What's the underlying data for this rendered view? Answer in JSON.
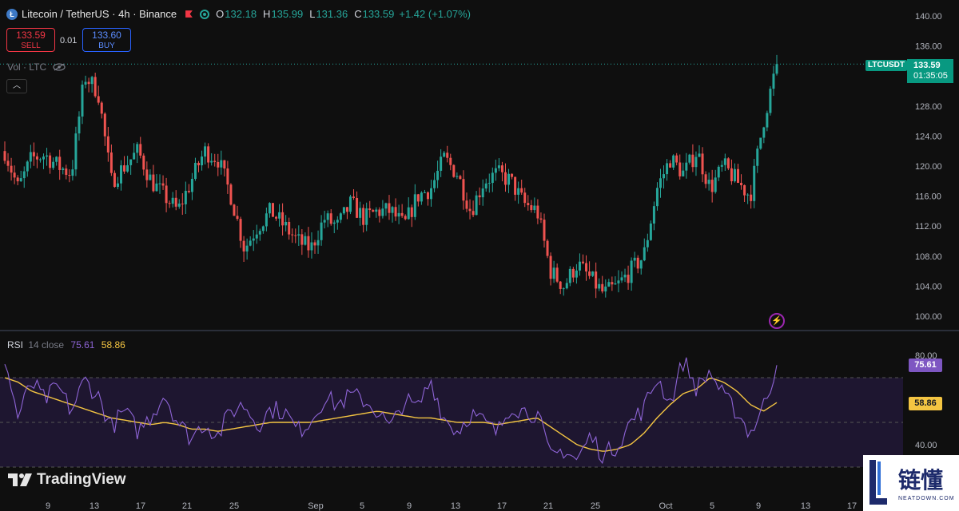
{
  "header": {
    "symbol_title": "Litecoin / TetherUS · 4h · Binance",
    "ohlc": [
      {
        "key": "O",
        "value": "132.18"
      },
      {
        "key": "H",
        "value": "135.99"
      },
      {
        "key": "L",
        "value": "131.36"
      },
      {
        "key": "C",
        "value": "133.59"
      }
    ],
    "change": "+1.42 (+1.07%)"
  },
  "trade": {
    "sell_price": "133.59",
    "sell_label": "SELL",
    "spread": "0.01",
    "buy_price": "133.60",
    "buy_label": "BUY"
  },
  "volume_label": "Vol · LTC",
  "rsi_legend": {
    "name": "RSI",
    "params": "14 close",
    "rsi": "75.61",
    "ma": "58.86"
  },
  "last_price": {
    "symbol": "LTCUSDT",
    "price": "133.59",
    "countdown": "01:35:05"
  },
  "branding": {
    "name": "TradingView"
  },
  "watermark": {
    "title": "链懂",
    "sub": "NEATDOWN.COM"
  },
  "colors": {
    "up": "#26a69a",
    "down": "#ef5350",
    "rsi": "#8e64d6",
    "rsi_ma": "#f4c542",
    "bg": "#0f0f0f"
  },
  "icons": [
    "litecoin-logo-icon",
    "flag-icon",
    "market-open-icon",
    "eye-hidden-icon",
    "chevron-up-icon",
    "lightning-icon",
    "tradingview-logo-icon"
  ],
  "chart_data": [
    {
      "type": "candlestick",
      "title": "Litecoin / TetherUS · 4h · Binance",
      "ylim": [
        100,
        140
      ],
      "yticks": [
        "140.00",
        "136.00",
        "128.00",
        "124.00",
        "120.00",
        "116.00",
        "112.00",
        "108.00",
        "104.00",
        "100.00"
      ],
      "xticks": [
        "9",
        "13",
        "17",
        "21",
        "25",
        "Sep",
        "5",
        "9",
        "13",
        "17",
        "21",
        "25",
        "Oct",
        "5",
        "9",
        "13",
        "17"
      ],
      "close_path": [
        122,
        117,
        121,
        121.5,
        120,
        119,
        132,
        130,
        118,
        120,
        122,
        118,
        116,
        114,
        118,
        122,
        121,
        116,
        109,
        112,
        114,
        112,
        110,
        109,
        113,
        112,
        115,
        113,
        114,
        114,
        112,
        116,
        117,
        121,
        119,
        114,
        118,
        119,
        118,
        115,
        114,
        106,
        104,
        107,
        105,
        103,
        104,
        106,
        108,
        117,
        121,
        119,
        122,
        117,
        120,
        118,
        116,
        126,
        133.59
      ],
      "last": 133.59
    },
    {
      "type": "line",
      "title": "RSI 14 close",
      "ylim": [
        30,
        85
      ],
      "yticks": [
        "80.00",
        "40.00"
      ],
      "series": [
        {
          "name": "RSI",
          "values": [
            78,
            52,
            68,
            60,
            66,
            55,
            69,
            62,
            48,
            55,
            46,
            53,
            63,
            50,
            43,
            50,
            44,
            55,
            58,
            49,
            56,
            55,
            46,
            51,
            61,
            58,
            62,
            60,
            55,
            47,
            60,
            56,
            69,
            52,
            46,
            54,
            50,
            45,
            58,
            55,
            54,
            34,
            38,
            33,
            44,
            35,
            40,
            50,
            56,
            70,
            59,
            78,
            65,
            73,
            61,
            55,
            45,
            57,
            75.61
          ]
        },
        {
          "name": "MA",
          "values": [
            70,
            68,
            64,
            62,
            60,
            58,
            56,
            54,
            52,
            51,
            50,
            49,
            50,
            49,
            47,
            47,
            46,
            47,
            48,
            49,
            50,
            50,
            50,
            50,
            51,
            52,
            53,
            54,
            55,
            54,
            53,
            52,
            52,
            51,
            50,
            50,
            50,
            49,
            50,
            51,
            52,
            48,
            44,
            40,
            38,
            37,
            38,
            40,
            45,
            52,
            58,
            63,
            65,
            70,
            68,
            64,
            58,
            55,
            58.86
          ]
        }
      ],
      "band": [
        70,
        30
      ]
    }
  ]
}
